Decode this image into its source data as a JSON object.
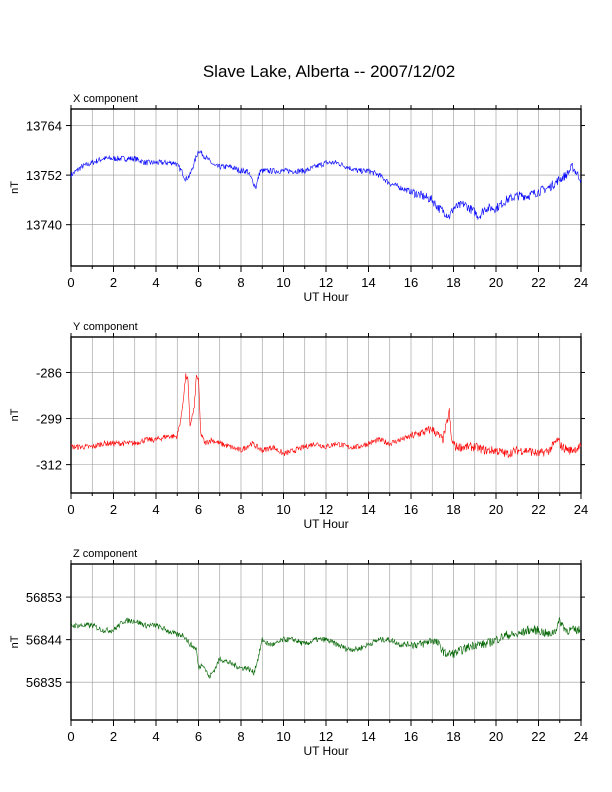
{
  "title": "Slave Lake, Alberta -- 2007/12/02",
  "chart_data": [
    {
      "type": "line",
      "panel_label": "X component",
      "xlabel": "UT Hour",
      "ylabel": "nT",
      "xlim": [
        0,
        24
      ],
      "ylim": [
        13730,
        13768
      ],
      "xticks": [
        0,
        2,
        4,
        6,
        8,
        10,
        12,
        14,
        16,
        18,
        20,
        22,
        24
      ],
      "yticks": [
        13740,
        13752,
        13764
      ],
      "grid": true,
      "color": "#0000ff",
      "series": [
        {
          "x": [
            0,
            0.5,
            1,
            1.5,
            2,
            2.5,
            3,
            3.5,
            4,
            4.5,
            4.9,
            5.2,
            5.4,
            5.6,
            5.8,
            6.0,
            6.2,
            6.4,
            6.6,
            6.8,
            7.0,
            7.5,
            8.0,
            8.3,
            8.6,
            8.7,
            8.9,
            9.2,
            9.5,
            10,
            10.5,
            11,
            11.5,
            12,
            12.5,
            13,
            13.5,
            14,
            14.5,
            15,
            15.5,
            16,
            16.5,
            17,
            17.3,
            17.6,
            17.8,
            18,
            18.5,
            19,
            19.2,
            19.5,
            20,
            20.5,
            21,
            21.5,
            22,
            22.5,
            23,
            23.3,
            23.6,
            24
          ],
          "y": [
            13752,
            13754,
            13755,
            13756,
            13756,
            13756,
            13756,
            13755,
            13755,
            13755,
            13755,
            13753,
            13751,
            13752,
            13755,
            13758,
            13757,
            13756,
            13755,
            13754,
            13754,
            13754,
            13753,
            13753,
            13750,
            13749,
            13753,
            13753,
            13753,
            13753,
            13753,
            13753,
            13754,
            13755,
            13755,
            13754,
            13753,
            13753,
            13752,
            13750,
            13749,
            13748,
            13747,
            13746,
            13744,
            13743,
            13742,
            13744,
            13745,
            13743,
            13742,
            13744,
            13744,
            13746,
            13747,
            13747,
            13748,
            13749,
            13751,
            13752,
            13754,
            13751
          ]
        }
      ]
    },
    {
      "type": "line",
      "panel_label": "Y component",
      "xlabel": "UT Hour",
      "ylabel": "nT",
      "xlim": [
        0,
        24
      ],
      "ylim": [
        -320,
        -276
      ],
      "xticks": [
        0,
        2,
        4,
        6,
        8,
        10,
        12,
        14,
        16,
        18,
        20,
        22,
        24
      ],
      "yticks": [
        -286,
        -299,
        -312
      ],
      "grid": true,
      "color": "#ff0000",
      "series": [
        {
          "x": [
            0,
            0.5,
            1,
            1.5,
            2,
            2.5,
            3,
            3.5,
            4,
            4.5,
            5.0,
            5.2,
            5.4,
            5.5,
            5.6,
            5.8,
            5.9,
            6.0,
            6.1,
            6.3,
            6.6,
            7,
            7.5,
            8,
            8.5,
            9,
            9.5,
            10,
            10.5,
            11,
            11.5,
            12,
            12.5,
            13,
            13.5,
            14,
            14.5,
            15,
            15.5,
            16,
            16.5,
            17,
            17.5,
            17.7,
            17.8,
            17.9,
            18.1,
            18.5,
            19,
            19.5,
            20,
            20.5,
            21,
            21.5,
            22,
            22.5,
            22.9,
            23.1,
            23.5,
            24
          ],
          "y": [
            -307,
            -307,
            -307,
            -306,
            -306,
            -306,
            -306,
            -305,
            -305,
            -304,
            -304,
            -298,
            -287,
            -288,
            -301,
            -296,
            -287,
            -288,
            -303,
            -306,
            -305,
            -306,
            -307,
            -308,
            -306,
            -308,
            -307,
            -309,
            -308,
            -307,
            -306,
            -307,
            -306,
            -307,
            -307,
            -306,
            -305,
            -306,
            -305,
            -304,
            -303,
            -302,
            -305,
            -300,
            -297,
            -305,
            -307,
            -307,
            -307,
            -308,
            -308,
            -309,
            -308,
            -308,
            -309,
            -308,
            -305,
            -307,
            -308,
            -307
          ]
        }
      ]
    },
    {
      "type": "line",
      "panel_label": "Z component",
      "xlabel": "UT Hour",
      "ylabel": "nT",
      "xlim": [
        0,
        24
      ],
      "ylim": [
        56827,
        56860
      ],
      "xticks": [
        0,
        2,
        4,
        6,
        8,
        10,
        12,
        14,
        16,
        18,
        20,
        22,
        24
      ],
      "yticks": [
        56835,
        56844,
        56853
      ],
      "grid": true,
      "color": "#006400",
      "series": [
        {
          "x": [
            0,
            0.5,
            1,
            1.5,
            2,
            2.5,
            3,
            3.5,
            4,
            4.5,
            5,
            5.3,
            5.6,
            5.9,
            6.0,
            6.2,
            6.5,
            6.8,
            7.0,
            7.5,
            8.0,
            8.3,
            8.6,
            8.8,
            9.0,
            9.3,
            9.6,
            10,
            10.5,
            11,
            11.5,
            12,
            12.5,
            13,
            13.5,
            14,
            14.5,
            15,
            15.5,
            16,
            16.5,
            17,
            17.3,
            17.6,
            18,
            18.5,
            19,
            19.5,
            20,
            20.5,
            21,
            21.5,
            22,
            22.5,
            22.8,
            23,
            23.3,
            23.7,
            24
          ],
          "y": [
            56847,
            56847,
            56847,
            56846,
            56846,
            56848,
            56848,
            56847,
            56847,
            56846,
            56845,
            56845,
            56843,
            56842,
            56838,
            56839,
            56836,
            56838,
            56840,
            56839,
            56838,
            56838,
            56837,
            56840,
            56844,
            56843,
            56843,
            56844,
            56844,
            56843,
            56844,
            56844,
            56843,
            56842,
            56842,
            56843,
            56844,
            56844,
            56843,
            56843,
            56843,
            56844,
            56843,
            56841,
            56841,
            56842,
            56843,
            56843,
            56844,
            56845,
            56845,
            56846,
            56846,
            56845,
            56846,
            56848,
            56846,
            56846,
            56846
          ]
        }
      ]
    }
  ]
}
